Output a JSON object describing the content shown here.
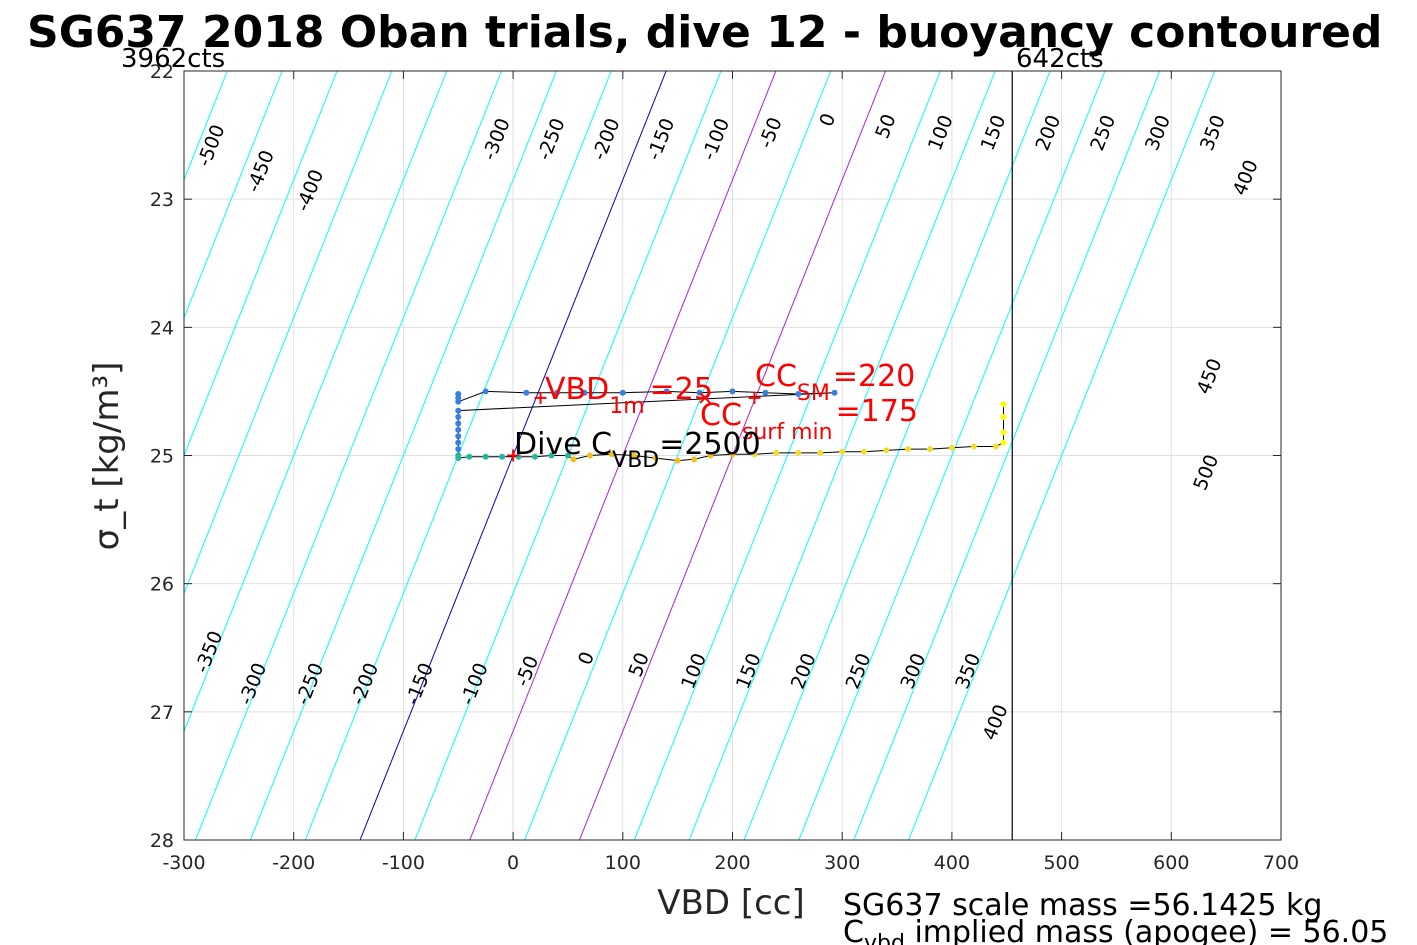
{
  "chart_data": {
    "type": "line",
    "title": "SG637 2018 Oban trials, dive 12 - buoyancy contoured",
    "xlabel": "VBD [cc]",
    "ylabel": "σ_t [kg/m³]",
    "xlim": [
      -300,
      700
    ],
    "ylim": [
      28,
      22
    ],
    "x_ticks": [
      -300,
      -200,
      -100,
      0,
      100,
      200,
      300,
      400,
      500,
      600,
      700
    ],
    "y_ticks": [
      22,
      23,
      24,
      25,
      26,
      27,
      28
    ],
    "x_tick_labels": [
      "-300",
      "-200",
      "-100",
      "0",
      "100",
      "200",
      "300",
      "400",
      "500",
      "600",
      "700"
    ],
    "y_tick_labels": [
      "22",
      "23",
      "24",
      "25",
      "26",
      "27",
      "28"
    ],
    "grid": true,
    "corner_labels": {
      "left": "3962cts",
      "right": "642cts"
    },
    "vbd_limit_line_x": 455,
    "contours": {
      "values": [
        -500,
        -450,
        -400,
        -350,
        -300,
        -250,
        -200,
        -150,
        -100,
        -50,
        0,
        50,
        100,
        150,
        200,
        250,
        300,
        350,
        400,
        450,
        500
      ],
      "slope_cc_per_sigma": 46.5,
      "zero_line_color": "#0000cc",
      "highlight_values": [
        100,
        200
      ],
      "highlight_color": "#aa22dd",
      "color": "#00ffff",
      "top_labels": [
        {
          "label": "-500",
          "x": -270,
          "y": 22.6
        },
        {
          "label": "-450",
          "x": -225,
          "y": 22.8
        },
        {
          "label": "-400",
          "x": -180,
          "y": 22.95
        },
        {
          "label": "-300",
          "x": -10,
          "y": 22.55
        },
        {
          "label": "-250",
          "x": 40,
          "y": 22.55
        },
        {
          "label": "-200",
          "x": 90,
          "y": 22.55
        },
        {
          "label": "-150",
          "x": 140,
          "y": 22.55
        },
        {
          "label": "-100",
          "x": 190,
          "y": 22.55
        },
        {
          "label": "-50",
          "x": 240,
          "y": 22.5
        },
        {
          "label": "0",
          "x": 292,
          "y": 22.4
        },
        {
          "label": "50",
          "x": 345,
          "y": 22.45
        },
        {
          "label": "100",
          "x": 395,
          "y": 22.5
        },
        {
          "label": "150",
          "x": 443,
          "y": 22.5
        },
        {
          "label": "200",
          "x": 493,
          "y": 22.5
        },
        {
          "label": "250",
          "x": 543,
          "y": 22.5
        },
        {
          "label": "300",
          "x": 593,
          "y": 22.5
        },
        {
          "label": "350",
          "x": 643,
          "y": 22.5
        },
        {
          "label": "400",
          "x": 673,
          "y": 22.85
        },
        {
          "label": "450",
          "x": 640,
          "y": 24.4
        },
        {
          "label": "500",
          "x": 637,
          "y": 25.15
        }
      ],
      "bottom_labels": [
        {
          "label": "-350",
          "x": -272,
          "y": 26.55
        },
        {
          "label": "-300",
          "x": -232,
          "y": 26.8
        },
        {
          "label": "-250",
          "x": -180,
          "y": 26.8
        },
        {
          "label": "-200",
          "x": -130,
          "y": 26.8
        },
        {
          "label": "-150",
          "x": -80,
          "y": 26.8
        },
        {
          "label": "-100",
          "x": -30,
          "y": 26.8
        },
        {
          "label": "-50",
          "x": 18,
          "y": 26.7
        },
        {
          "label": "0",
          "x": 72,
          "y": 26.6
        },
        {
          "label": "50",
          "x": 120,
          "y": 26.65
        },
        {
          "label": "100",
          "x": 170,
          "y": 26.7
        },
        {
          "label": "150",
          "x": 220,
          "y": 26.7
        },
        {
          "label": "200",
          "x": 270,
          "y": 26.7
        },
        {
          "label": "250",
          "x": 320,
          "y": 26.7
        },
        {
          "label": "300",
          "x": 370,
          "y": 26.7
        },
        {
          "label": "350",
          "x": 420,
          "y": 26.7
        },
        {
          "label": "400",
          "x": 445,
          "y": 27.1
        }
      ]
    },
    "series": [
      {
        "name": "dive trace",
        "color": "#000000",
        "points": [
          [
            -50,
            24.52
          ],
          [
            -50,
            24.55
          ],
          [
            -50,
            24.58
          ],
          [
            -25,
            24.5
          ],
          [
            12,
            24.51
          ],
          [
            40,
            24.51
          ],
          [
            65,
            24.51
          ],
          [
            100,
            24.51
          ],
          [
            140,
            24.5
          ],
          [
            170,
            24.51
          ],
          [
            200,
            24.5
          ],
          [
            230,
            24.51
          ],
          [
            260,
            24.52
          ],
          [
            293,
            24.51
          ],
          [
            -50,
            24.65
          ],
          [
            -50,
            24.7
          ],
          [
            -50,
            24.75
          ],
          [
            -50,
            24.8
          ],
          [
            -50,
            24.85
          ],
          [
            -50,
            24.9
          ],
          [
            -50,
            24.95
          ],
          [
            -50,
            25.0
          ],
          [
            -50,
            25.02
          ],
          [
            -40,
            25.01
          ],
          [
            -25,
            25.01
          ],
          [
            -10,
            25.01
          ],
          [
            5,
            25.01
          ],
          [
            20,
            25.01
          ],
          [
            35,
            25.0
          ],
          [
            50,
            25.0
          ],
          [
            55,
            25.03
          ],
          [
            70,
            25.0
          ],
          [
            90,
            24.99
          ],
          [
            110,
            25.0
          ],
          [
            130,
            25.02
          ],
          [
            150,
            25.04
          ],
          [
            165,
            25.03
          ],
          [
            180,
            25.0
          ],
          [
            200,
            24.99
          ],
          [
            220,
            24.99
          ],
          [
            240,
            24.98
          ],
          [
            260,
            24.98
          ],
          [
            280,
            24.98
          ],
          [
            300,
            24.97
          ],
          [
            320,
            24.97
          ],
          [
            340,
            24.96
          ],
          [
            360,
            24.95
          ],
          [
            380,
            24.95
          ],
          [
            400,
            24.94
          ],
          [
            420,
            24.93
          ],
          [
            440,
            24.93
          ],
          [
            447,
            24.9
          ],
          [
            447,
            24.82
          ],
          [
            447,
            24.7
          ],
          [
            447,
            24.6
          ]
        ]
      }
    ],
    "point_colors": {
      "early": "#3a7fe0",
      "mid": "#22b8a0",
      "late": "#f0c020",
      "end": "#ffff00"
    },
    "markers": [
      {
        "label": "VBD",
        "sub": "1m",
        "suffix": "=25",
        "x": 25,
        "y": 24.55,
        "color": "#ff0000"
      },
      {
        "label": "CC",
        "sub": "SM",
        "suffix": "=220",
        "x": 220,
        "y": 24.55,
        "color": "#ff0000"
      },
      {
        "label": "CC",
        "sub": "surf min",
        "suffix": "=175",
        "x": 175,
        "y": 24.55,
        "color": "#ff0000"
      },
      {
        "label": "Dive C",
        "sub": "VBD",
        "suffix": "=2500",
        "x": 0,
        "y": 25.0,
        "color": "#000000"
      }
    ]
  },
  "annotations": {
    "vbd1m_label": "VBD",
    "vbd1m_sub": "1m",
    "vbd1m_value": "=25",
    "ccsm_label": "CC",
    "ccsm_sub": "SM",
    "ccsm_value": "=220",
    "ccsurf_label": "CC",
    "ccsurf_sub": "surf min",
    "ccsurf_value": "=175",
    "dive_label": "Dive C",
    "dive_sub": "VBD",
    "dive_value": "=2500"
  },
  "footer": {
    "line1": "SG637 scale mass =56.1425 kg",
    "line2_main": "C",
    "line2_sub": "vbd",
    "line2_rest": " implied mass (apogee) = 56.05"
  }
}
